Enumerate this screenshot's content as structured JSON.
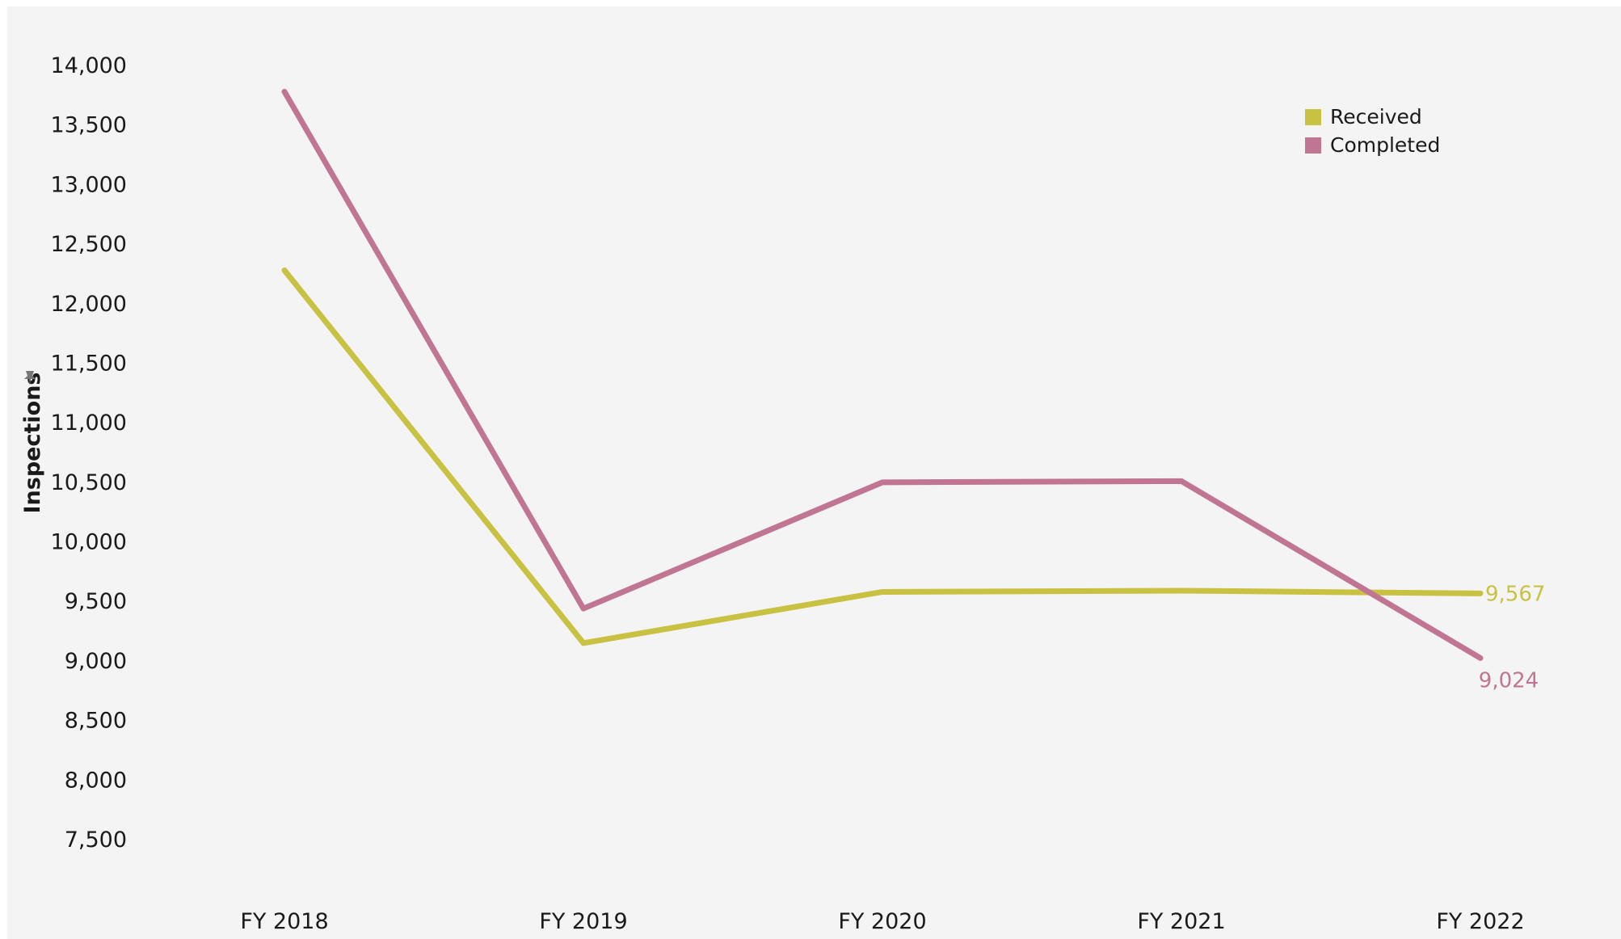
{
  "chart_data": {
    "type": "line",
    "title": "",
    "xlabel": "",
    "ylabel": "Inspections",
    "ylim": [
      7500,
      14000
    ],
    "yticks": [
      7500,
      8000,
      8500,
      9000,
      9500,
      10000,
      10500,
      11000,
      11500,
      12000,
      12500,
      13000,
      13500,
      14000
    ],
    "ytick_labels": [
      "7,500",
      "8,000",
      "8,500",
      "9,000",
      "9,500",
      "10,000",
      "10,500",
      "11,000",
      "11,500",
      "12,000",
      "12,500",
      "13,000",
      "13,500",
      "14,000"
    ],
    "categories": [
      "FY 2018",
      "FY 2019",
      "FY 2020",
      "FY 2021",
      "FY 2022"
    ],
    "series": [
      {
        "name": "Received",
        "color": "#c9c142",
        "values": [
          12280,
          9150,
          9580,
          9590,
          9567
        ],
        "end_label": "9,567"
      },
      {
        "name": "Completed",
        "color": "#c07592",
        "values": [
          13780,
          9440,
          10500,
          10510,
          9024
        ],
        "end_label": "9,024"
      }
    ],
    "grid": false,
    "legend": "top-right"
  }
}
